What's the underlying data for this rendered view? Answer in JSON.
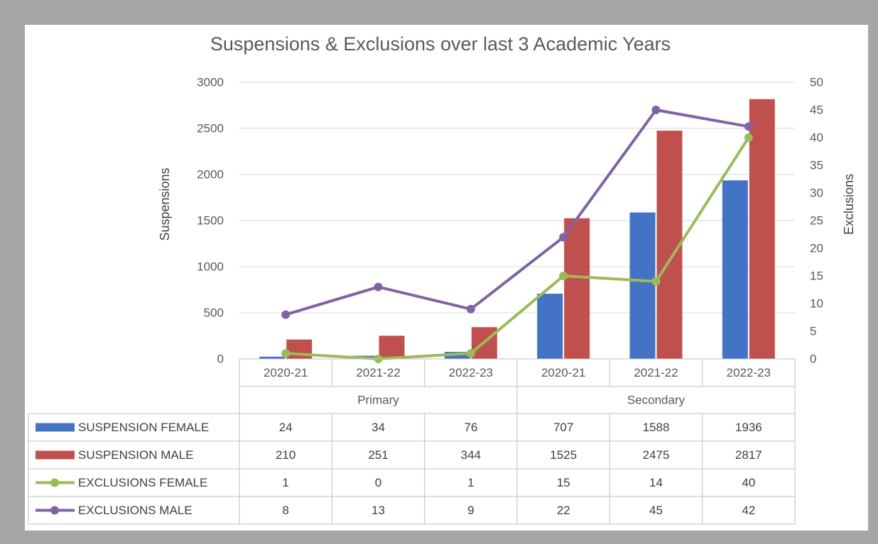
{
  "chart_data": {
    "type": "bar-line",
    "title": "Suspensions & Exclusions over last 3 Academic Years",
    "y_label": "Suspensions",
    "y2_label": "Exclusions",
    "groups": [
      {
        "name": "Primary",
        "categories": [
          "2020-21",
          "2021-22",
          "2022-23"
        ]
      },
      {
        "name": "Secondary",
        "categories": [
          "2020-21",
          "2021-22",
          "2022-23"
        ]
      }
    ],
    "series": [
      {
        "name": "SUSPENSION FEMALE",
        "type": "bar",
        "color": "#4472c4",
        "values": [
          24,
          34,
          76,
          707,
          1588,
          1936
        ]
      },
      {
        "name": "SUSPENSION MALE",
        "type": "bar",
        "color": "#c0504d",
        "values": [
          210,
          251,
          344,
          1525,
          2475,
          2817
        ]
      },
      {
        "name": "EXCLUSIONS FEMALE",
        "type": "line",
        "axis": "y2",
        "color": "#9bbb59",
        "values": [
          1,
          0,
          1,
          15,
          14,
          40
        ]
      },
      {
        "name": "EXCLUSIONS MALE",
        "type": "line",
        "axis": "y2",
        "color": "#8064a2",
        "values": [
          8,
          13,
          9,
          22,
          45,
          42
        ]
      }
    ],
    "ylim": [
      0,
      3000
    ],
    "yticks": [
      0,
      500,
      1000,
      1500,
      2000,
      2500,
      3000
    ],
    "y2lim": [
      0,
      50
    ],
    "y2ticks": [
      0,
      5,
      10,
      15,
      20,
      25,
      30,
      35,
      40,
      45,
      50
    ],
    "grid": true,
    "data_table": true
  }
}
